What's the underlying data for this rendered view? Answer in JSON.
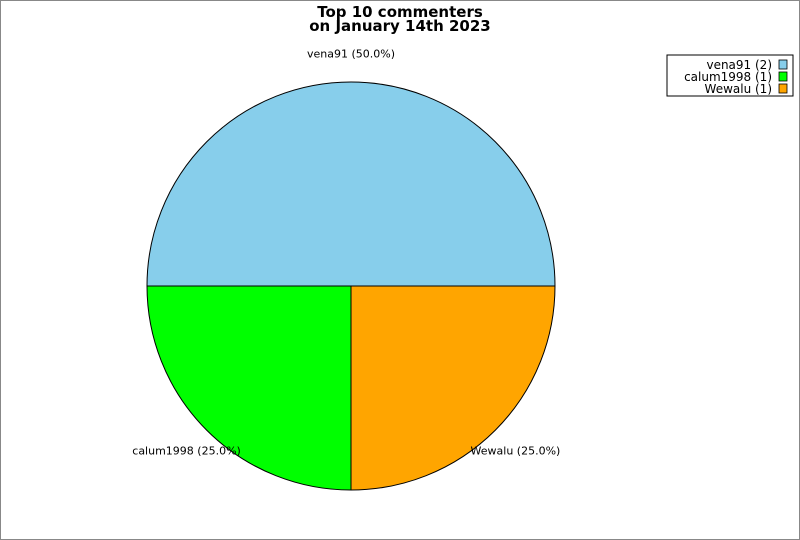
{
  "chart_data": {
    "type": "pie",
    "title": [
      "Top 10 commenters",
      "on January 14th 2023"
    ],
    "slices": [
      {
        "name": "vena91",
        "count": 2,
        "percent": 50.0,
        "label": "vena91 (50.0%)",
        "legend": "vena91 (2)",
        "color": "#87CEEB"
      },
      {
        "name": "calum1998",
        "count": 1,
        "percent": 25.0,
        "label": "calum1998 (25.0%)",
        "legend": "calum1998 (1)",
        "color": "#00FF00"
      },
      {
        "name": "Wewalu",
        "count": 1,
        "percent": 25.0,
        "label": "Wewalu (25.0%)",
        "legend": "Wewalu (1)",
        "color": "#FFA500"
      }
    ],
    "legend_position": "top-right"
  }
}
